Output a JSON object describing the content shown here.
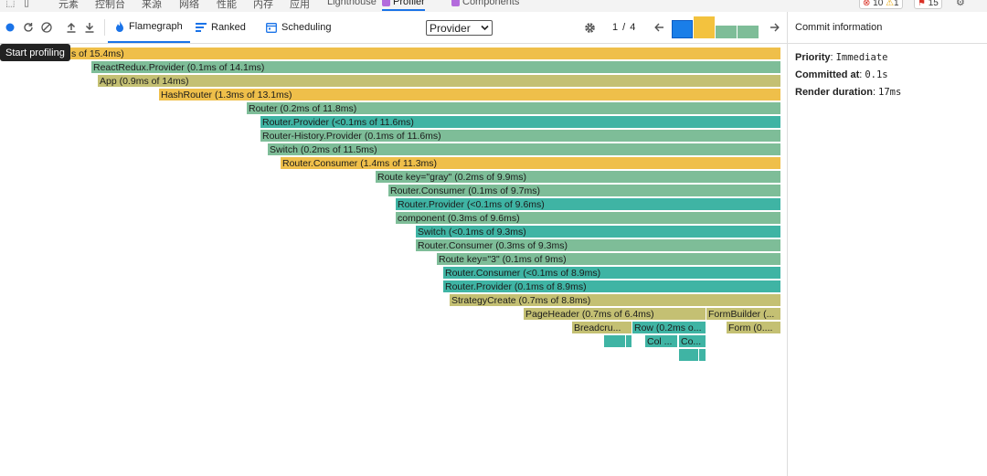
{
  "devtools_tabs": [
    "元素",
    "控制台",
    "来源",
    "网络",
    "性能",
    "内存",
    "应用",
    "Lighthouse",
    "Profiler",
    "Components"
  ],
  "badges": {
    "errors": "10",
    "warnings": "1",
    "issues": "15"
  },
  "toolbar": {
    "tabs": {
      "flamegraph": "Flamegraph",
      "ranked": "Ranked",
      "scheduling": "Scheduling"
    },
    "root_select": "Provider",
    "commit_counter": "1 / 4"
  },
  "tooltip": "Start profiling",
  "flame_bars": [
    "s of 15.4ms)",
    "ReactRedux.Provider (0.1ms of 14.1ms)",
    "App (0.9ms of 14ms)",
    "HashRouter (1.3ms of 13.1ms)",
    "Router (0.2ms of 11.8ms)",
    "Router.Provider (<0.1ms of 11.6ms)",
    "Router-History.Provider (0.1ms of 11.6ms)",
    "Switch (0.2ms of 11.5ms)",
    "Router.Consumer (1.4ms of 11.3ms)",
    "Route key=\"gray\" (0.2ms of 9.9ms)",
    "Router.Consumer (0.1ms of 9.7ms)",
    "Router.Provider (<0.1ms of 9.6ms)",
    "component (0.3ms of 9.6ms)",
    "Switch (<0.1ms of 9.3ms)",
    "Router.Consumer (0.3ms of 9.3ms)",
    "Route key=\"3\" (0.1ms of 9ms)",
    "Router.Consumer (<0.1ms of 8.9ms)",
    "Router.Provider (0.1ms of 8.9ms)",
    "StrategyCreate (0.7ms of 8.8ms)",
    "PageHeader (0.7ms of 6.4ms)",
    "FormBuilder (...",
    "Breadcru...",
    "Row (0.2ms o...",
    "Form (0....",
    "Col ...",
    "Co..."
  ],
  "commit_info": {
    "title": "Commit information",
    "priority_label": "Priority",
    "priority_value": "Immediate",
    "committed_label": "Committed at",
    "committed_value": "0.1s",
    "duration_label": "Render duration",
    "duration_value": "17ms"
  },
  "colors": {
    "accent": "#1a73e8",
    "yellow": "#efbf4a",
    "teal": "#3fb4a4",
    "sage": "#7ebd98",
    "olive": "#c4c073"
  }
}
